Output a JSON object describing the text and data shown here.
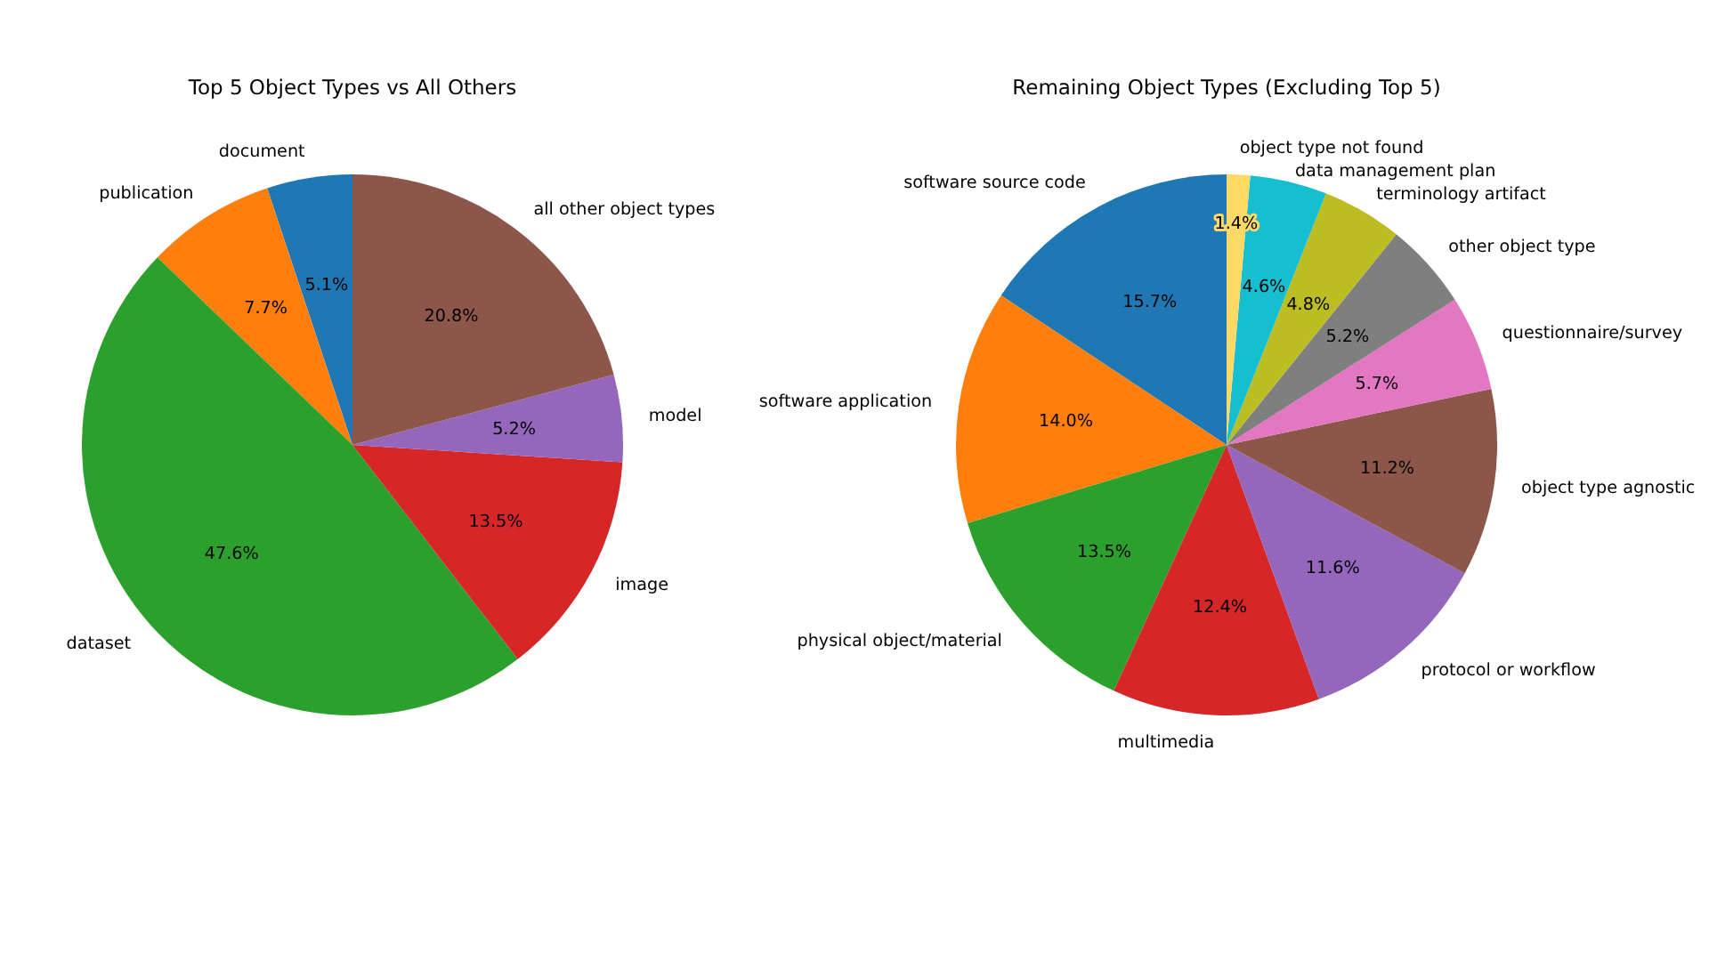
{
  "chart_data": [
    {
      "type": "pie",
      "title": "Top 5 Object Types vs All Others",
      "categories": [
        "document",
        "publication",
        "dataset",
        "image",
        "model",
        "all other object types"
      ],
      "values": [
        5.1,
        7.7,
        47.6,
        13.5,
        5.2,
        20.8
      ],
      "colors": [
        "#1f77b4",
        "#ff7f0e",
        "#2ca02c",
        "#d62728",
        "#9467bd",
        "#8c564b"
      ],
      "value_labels": [
        "5.1%",
        "7.7%",
        "47.6%",
        "13.5%",
        "5.2%",
        "20.8%"
      ]
    },
    {
      "type": "pie",
      "title": "Remaining Object Types (Excluding Top 5)",
      "categories": [
        "software source code",
        "software application",
        "physical object/material",
        "multimedia",
        "protocol or workflow",
        "object type agnostic",
        "questionnaire/survey",
        "other object type",
        "terminology artifact",
        "data management plan",
        "object type not found"
      ],
      "values": [
        15.7,
        14.0,
        13.5,
        12.4,
        11.6,
        11.2,
        5.7,
        5.2,
        4.8,
        4.6,
        1.4
      ],
      "colors": [
        "#1f77b4",
        "#ff7f0e",
        "#2ca02c",
        "#d62728",
        "#9467bd",
        "#8c564b",
        "#e377c2",
        "#7f7f7f",
        "#bcbd22",
        "#17becf",
        "#ffd966"
      ],
      "value_labels": [
        "15.7%",
        "14.0%",
        "13.5%",
        "12.4%",
        "11.6%",
        "11.2%",
        "5.7%",
        "5.2%",
        "4.8%",
        "4.6%",
        "1.4%"
      ]
    }
  ]
}
